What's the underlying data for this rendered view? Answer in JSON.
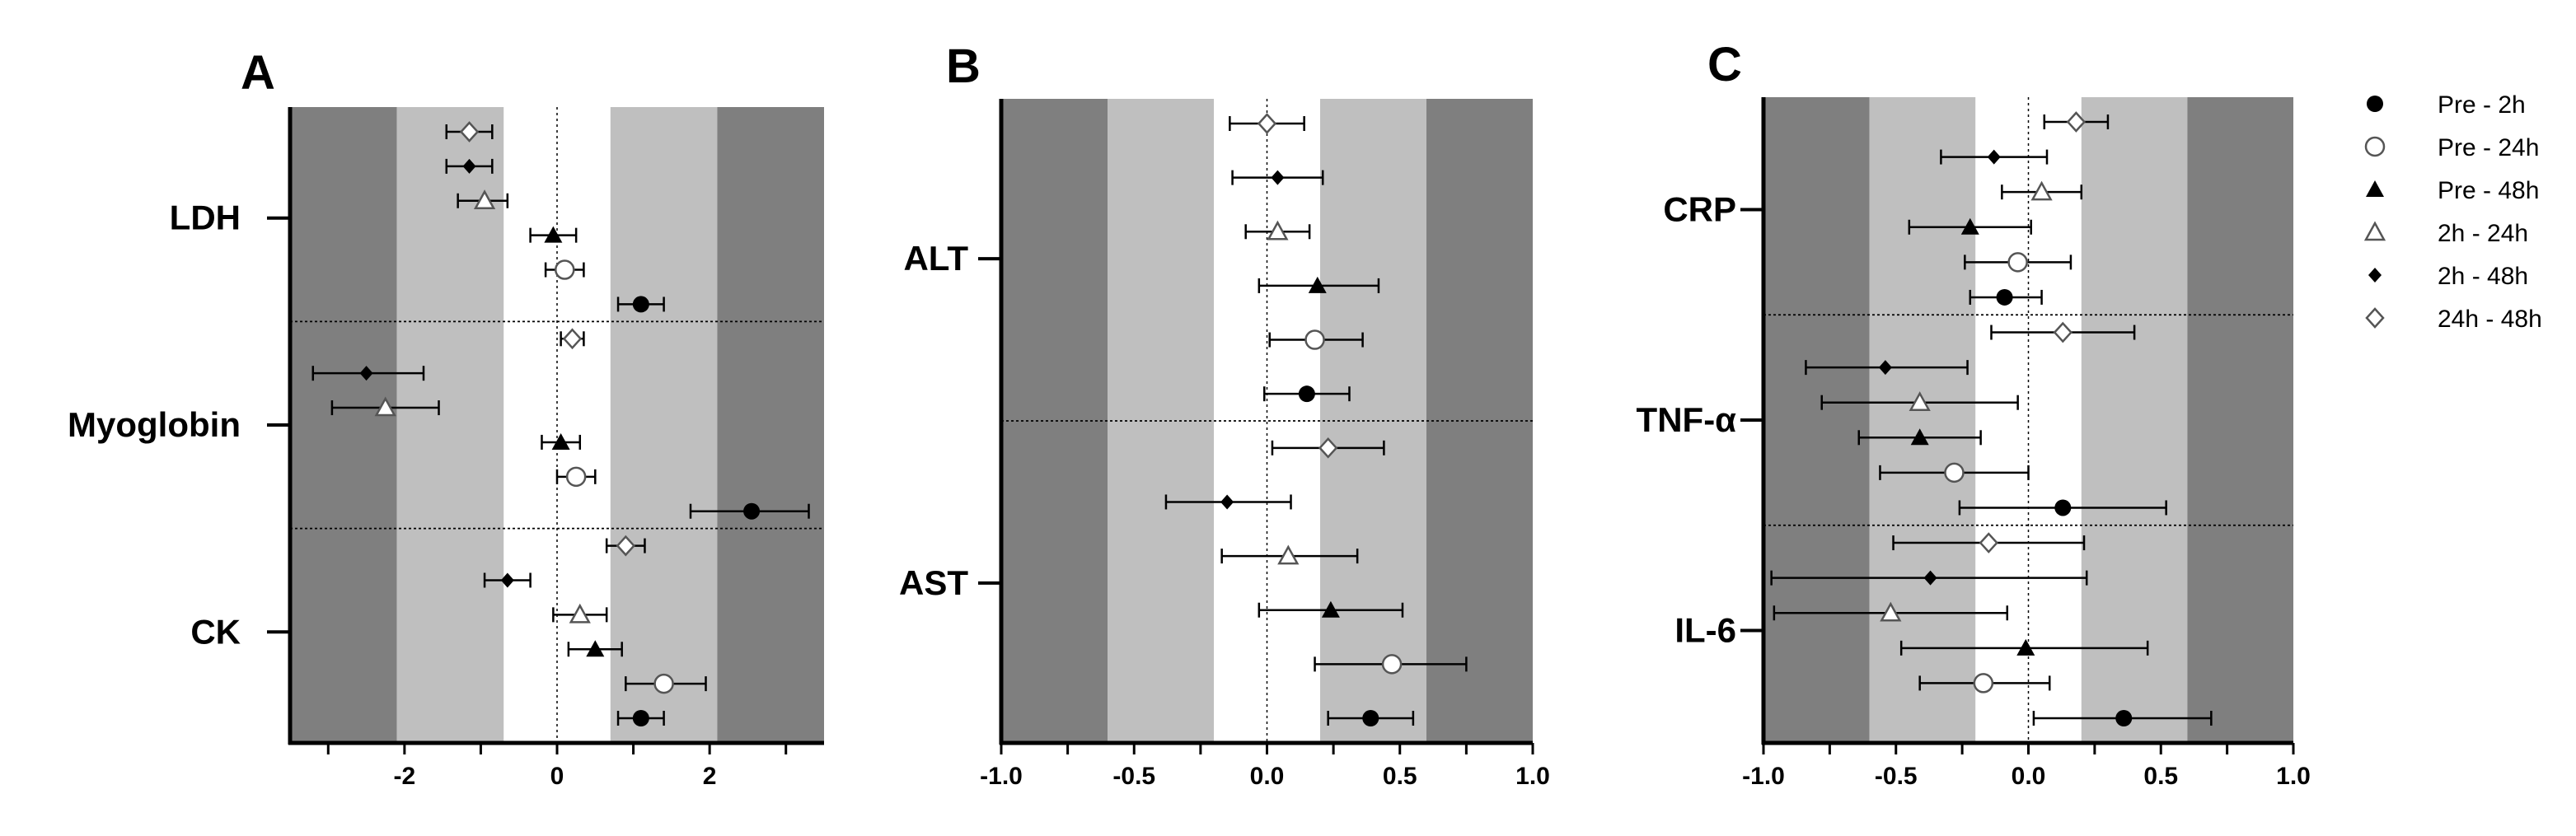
{
  "legend": {
    "items": [
      {
        "label": "Pre - 2h",
        "marker": "circle-filled"
      },
      {
        "label": "Pre - 24h",
        "marker": "circle-open"
      },
      {
        "label": "Pre - 48h",
        "marker": "triangle-filled"
      },
      {
        "label": "2h - 24h",
        "marker": "triangle-open"
      },
      {
        "label": "2h - 48h",
        "marker": "diamond-filled"
      },
      {
        "label": "24h - 48h",
        "marker": "diamond-open"
      }
    ]
  },
  "colors": {
    "dark_band": "#7f7f7f",
    "light_band": "#bfbfbf",
    "center": "#ffffff",
    "ink": "#000000",
    "open_marker_stroke": "#555555"
  },
  "chart_data": [
    {
      "type": "forest",
      "panel": "A",
      "xlim": [
        -3.5,
        3.5
      ],
      "xticks": [
        -2,
        0,
        2
      ],
      "xticklabels": [
        "-2",
        "0",
        "2"
      ],
      "bands": {
        "dark_outer": 2.1,
        "light_inner": 0.7
      },
      "groups": [
        {
          "label": "LDH",
          "rows": [
            {
              "series": "24h - 48h",
              "est": -1.15,
              "lo": -1.45,
              "hi": -0.85
            },
            {
              "series": "2h - 48h",
              "est": -1.15,
              "lo": -1.45,
              "hi": -0.85
            },
            {
              "series": "2h - 24h",
              "est": -0.95,
              "lo": -1.3,
              "hi": -0.65
            },
            {
              "series": "Pre - 48h",
              "est": -0.05,
              "lo": -0.35,
              "hi": 0.25
            },
            {
              "series": "Pre - 24h",
              "est": 0.1,
              "lo": -0.15,
              "hi": 0.35
            },
            {
              "series": "Pre - 2h",
              "est": 1.1,
              "lo": 0.8,
              "hi": 1.4
            }
          ]
        },
        {
          "label": "Myoglobin",
          "rows": [
            {
              "series": "24h - 48h",
              "est": 0.2,
              "lo": 0.05,
              "hi": 0.35
            },
            {
              "series": "2h - 48h",
              "est": -2.5,
              "lo": -3.2,
              "hi": -1.75
            },
            {
              "series": "2h - 24h",
              "est": -2.25,
              "lo": -2.95,
              "hi": -1.55
            },
            {
              "series": "Pre - 48h",
              "est": 0.05,
              "lo": -0.2,
              "hi": 0.3
            },
            {
              "series": "Pre - 24h",
              "est": 0.25,
              "lo": 0.0,
              "hi": 0.5
            },
            {
              "series": "Pre - 2h",
              "est": 2.55,
              "lo": 1.75,
              "hi": 3.3
            }
          ]
        },
        {
          "label": "CK",
          "rows": [
            {
              "series": "24h - 48h",
              "est": 0.9,
              "lo": 0.65,
              "hi": 1.15
            },
            {
              "series": "2h - 48h",
              "est": -0.65,
              "lo": -0.95,
              "hi": -0.35
            },
            {
              "series": "2h - 24h",
              "est": 0.3,
              "lo": -0.05,
              "hi": 0.65
            },
            {
              "series": "Pre - 48h",
              "est": 0.5,
              "lo": 0.15,
              "hi": 0.85
            },
            {
              "series": "Pre - 24h",
              "est": 1.4,
              "lo": 0.9,
              "hi": 1.95
            },
            {
              "series": "Pre - 2h",
              "est": 1.1,
              "lo": 0.8,
              "hi": 1.4
            }
          ]
        }
      ]
    },
    {
      "type": "forest",
      "panel": "B",
      "xlim": [
        -1.0,
        1.0
      ],
      "xticks": [
        -1.0,
        -0.5,
        0.0,
        0.5,
        1.0
      ],
      "xticklabels": [
        "-1.0",
        "-0.5",
        "0.0",
        "0.5",
        "1.0"
      ],
      "bands": {
        "dark_outer": 0.6,
        "light_inner": 0.2
      },
      "groups": [
        {
          "label": "ALT",
          "rows": [
            {
              "series": "24h - 48h",
              "est": 0.0,
              "lo": -0.14,
              "hi": 0.14
            },
            {
              "series": "2h - 48h",
              "est": 0.04,
              "lo": -0.13,
              "hi": 0.21
            },
            {
              "series": "2h - 24h",
              "est": 0.04,
              "lo": -0.08,
              "hi": 0.16
            },
            {
              "series": "Pre - 48h",
              "est": 0.19,
              "lo": -0.03,
              "hi": 0.42
            },
            {
              "series": "Pre - 24h",
              "est": 0.18,
              "lo": 0.01,
              "hi": 0.36
            },
            {
              "series": "Pre - 2h",
              "est": 0.15,
              "lo": -0.01,
              "hi": 0.31
            }
          ]
        },
        {
          "label": "AST",
          "rows": [
            {
              "series": "24h - 48h",
              "est": 0.23,
              "lo": 0.02,
              "hi": 0.44
            },
            {
              "series": "2h - 48h",
              "est": -0.15,
              "lo": -0.38,
              "hi": 0.09
            },
            {
              "series": "2h - 24h",
              "est": 0.08,
              "lo": -0.17,
              "hi": 0.34
            },
            {
              "series": "Pre - 48h",
              "est": 0.24,
              "lo": -0.03,
              "hi": 0.51
            },
            {
              "series": "Pre - 24h",
              "est": 0.47,
              "lo": 0.18,
              "hi": 0.75
            },
            {
              "series": "Pre - 2h",
              "est": 0.39,
              "lo": 0.23,
              "hi": 0.55
            }
          ]
        }
      ]
    },
    {
      "type": "forest",
      "panel": "C",
      "xlim": [
        -1.0,
        1.0
      ],
      "xticks": [
        -1.0,
        -0.5,
        0.0,
        0.5,
        1.0
      ],
      "xticklabels": [
        "-1.0",
        "-0.5",
        "0.0",
        "0.5",
        "1.0"
      ],
      "bands": {
        "dark_outer": 0.6,
        "light_inner": 0.2
      },
      "groups": [
        {
          "label": "CRP",
          "rows": [
            {
              "series": "24h - 48h",
              "est": 0.18,
              "lo": 0.06,
              "hi": 0.3
            },
            {
              "series": "2h - 48h",
              "est": -0.13,
              "lo": -0.33,
              "hi": 0.07
            },
            {
              "series": "2h - 24h",
              "est": 0.05,
              "lo": -0.1,
              "hi": 0.2
            },
            {
              "series": "Pre - 48h",
              "est": -0.22,
              "lo": -0.45,
              "hi": 0.01
            },
            {
              "series": "Pre - 24h",
              "est": -0.04,
              "lo": -0.24,
              "hi": 0.16
            },
            {
              "series": "Pre - 2h",
              "est": -0.09,
              "lo": -0.22,
              "hi": 0.05
            }
          ]
        },
        {
          "label": "TNF-α",
          "rows": [
            {
              "series": "24h - 48h",
              "est": 0.13,
              "lo": -0.14,
              "hi": 0.4
            },
            {
              "series": "2h - 48h",
              "est": -0.54,
              "lo": -0.84,
              "hi": -0.23
            },
            {
              "series": "2h - 24h",
              "est": -0.41,
              "lo": -0.78,
              "hi": -0.04
            },
            {
              "series": "Pre - 48h",
              "est": -0.41,
              "lo": -0.64,
              "hi": -0.18
            },
            {
              "series": "Pre - 24h",
              "est": -0.28,
              "lo": -0.56,
              "hi": 0.0
            },
            {
              "series": "Pre - 2h",
              "est": 0.13,
              "lo": -0.26,
              "hi": 0.52
            }
          ]
        },
        {
          "label": "IL-6",
          "rows": [
            {
              "series": "24h - 48h",
              "est": -0.15,
              "lo": -0.51,
              "hi": 0.21
            },
            {
              "series": "2h - 48h",
              "est": -0.37,
              "lo": -0.97,
              "hi": 0.22
            },
            {
              "series": "2h - 24h",
              "est": -0.52,
              "lo": -0.96,
              "hi": -0.08
            },
            {
              "series": "Pre - 48h",
              "est": -0.01,
              "lo": -0.48,
              "hi": 0.45
            },
            {
              "series": "Pre - 24h",
              "est": -0.17,
              "lo": -0.41,
              "hi": 0.08
            },
            {
              "series": "Pre - 2h",
              "est": 0.36,
              "lo": 0.02,
              "hi": 0.69
            }
          ]
        }
      ]
    }
  ]
}
